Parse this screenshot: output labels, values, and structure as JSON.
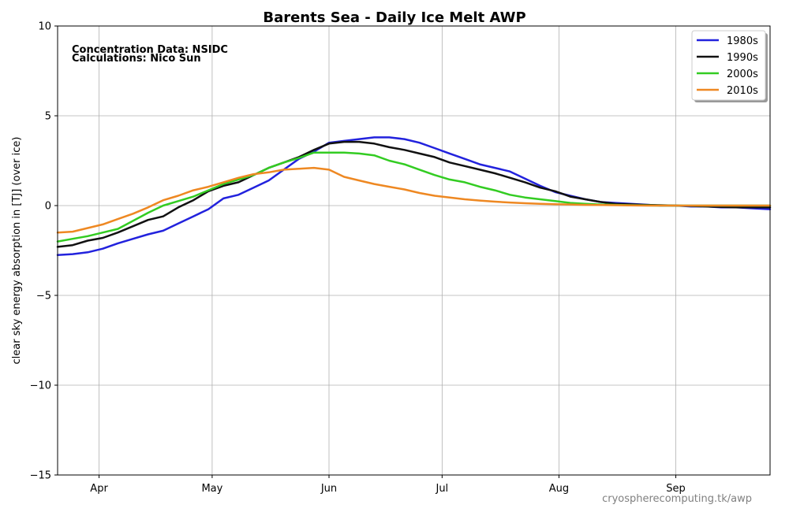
{
  "chart_data": {
    "type": "line",
    "title": "Barents Sea - Daily Ice Melt  AWP",
    "ylabel": "clear sky energy absorption in  [TJ] (over ice)",
    "xlabel": "",
    "ylim": [
      -15,
      10
    ],
    "yticks": [
      10,
      5,
      0,
      -5,
      -10,
      -15
    ],
    "ytick_labels": [
      "10",
      "5",
      "0",
      "−5",
      "−10",
      "−15"
    ],
    "xlim_doy": [
      80,
      269
    ],
    "xticks": [
      {
        "label": "Apr",
        "doy": 91
      },
      {
        "label": "May",
        "doy": 121
      },
      {
        "label": "Jun",
        "doy": 152
      },
      {
        "label": "Jul",
        "doy": 182
      },
      {
        "label": "Aug",
        "doy": 213
      },
      {
        "label": "Sep",
        "doy": 244
      }
    ],
    "grid": true,
    "legend_position": "top-right",
    "annotations": [
      "Concentration Data: NSIDC",
      "Calculations: Nico Sun"
    ],
    "credit": "cryospherecomputing.tk/awp",
    "series": [
      {
        "name": "1980s",
        "color": "#2222dd",
        "x": [
          80,
          84,
          88,
          92,
          96,
          100,
          104,
          108,
          112,
          116,
          120,
          124,
          128,
          132,
          136,
          140,
          144,
          148,
          152,
          156,
          160,
          164,
          168,
          172,
          176,
          180,
          184,
          188,
          192,
          196,
          200,
          204,
          208,
          212,
          216,
          220,
          224,
          228,
          232,
          236,
          240,
          244,
          248,
          252,
          256,
          260,
          264,
          269
        ],
        "y": [
          -2.75,
          -2.7,
          -2.6,
          -2.4,
          -2.1,
          -1.85,
          -1.6,
          -1.4,
          -1.0,
          -0.6,
          -0.2,
          0.4,
          0.6,
          1.0,
          1.4,
          2.0,
          2.6,
          3.0,
          3.5,
          3.6,
          3.7,
          3.8,
          3.8,
          3.7,
          3.5,
          3.2,
          2.9,
          2.6,
          2.3,
          2.1,
          1.9,
          1.5,
          1.1,
          0.75,
          0.55,
          0.35,
          0.2,
          0.15,
          0.1,
          0.05,
          0.0,
          0.0,
          -0.05,
          -0.05,
          -0.1,
          -0.1,
          -0.15,
          -0.2
        ]
      },
      {
        "name": "1990s",
        "color": "#111111",
        "x": [
          80,
          84,
          88,
          92,
          96,
          100,
          104,
          108,
          112,
          116,
          120,
          124,
          128,
          132,
          136,
          140,
          144,
          148,
          152,
          156,
          160,
          164,
          168,
          172,
          176,
          180,
          184,
          188,
          192,
          196,
          200,
          204,
          208,
          212,
          216,
          220,
          224,
          228,
          232,
          236,
          240,
          244,
          248,
          252,
          256,
          260,
          264,
          269
        ],
        "y": [
          -2.3,
          -2.2,
          -1.95,
          -1.8,
          -1.5,
          -1.15,
          -0.8,
          -0.6,
          -0.1,
          0.3,
          0.8,
          1.1,
          1.3,
          1.7,
          2.1,
          2.4,
          2.7,
          3.1,
          3.45,
          3.55,
          3.55,
          3.45,
          3.25,
          3.1,
          2.9,
          2.7,
          2.4,
          2.2,
          2.0,
          1.8,
          1.55,
          1.3,
          1.0,
          0.8,
          0.5,
          0.35,
          0.2,
          0.1,
          0.07,
          0.04,
          0.02,
          0.0,
          -0.02,
          -0.05,
          -0.08,
          -0.1,
          -0.1,
          -0.1
        ]
      },
      {
        "name": "2000s",
        "color": "#33cc22",
        "x": [
          80,
          84,
          88,
          92,
          96,
          100,
          104,
          108,
          112,
          116,
          120,
          124,
          128,
          132,
          136,
          140,
          144,
          148,
          152,
          156,
          160,
          164,
          168,
          172,
          176,
          180,
          184,
          188,
          192,
          196,
          200,
          204,
          208,
          212,
          216,
          220,
          224,
          228,
          232,
          236,
          240,
          244,
          248,
          252,
          256,
          260,
          264,
          269
        ],
        "y": [
          -2.0,
          -1.85,
          -1.7,
          -1.5,
          -1.3,
          -0.85,
          -0.4,
          0.0,
          0.25,
          0.5,
          0.85,
          1.2,
          1.45,
          1.7,
          2.1,
          2.4,
          2.65,
          2.95,
          2.95,
          2.95,
          2.9,
          2.8,
          2.5,
          2.3,
          2.0,
          1.7,
          1.45,
          1.3,
          1.05,
          0.85,
          0.6,
          0.45,
          0.35,
          0.25,
          0.15,
          0.1,
          0.06,
          0.04,
          0.02,
          0.01,
          0.0,
          0.0,
          0.0,
          0.0,
          0.0,
          0.0,
          0.0,
          0.0
        ]
      },
      {
        "name": "2010s",
        "color": "#ee8822",
        "x": [
          80,
          84,
          88,
          92,
          96,
          100,
          104,
          108,
          112,
          116,
          120,
          124,
          128,
          132,
          136,
          140,
          144,
          148,
          152,
          156,
          160,
          164,
          168,
          172,
          176,
          180,
          184,
          188,
          192,
          196,
          200,
          204,
          208,
          212,
          216,
          220,
          224,
          228,
          232,
          236,
          240,
          244,
          248,
          252,
          256,
          260,
          264,
          269
        ],
        "y": [
          -1.5,
          -1.45,
          -1.25,
          -1.05,
          -0.75,
          -0.45,
          -0.1,
          0.3,
          0.55,
          0.85,
          1.05,
          1.3,
          1.55,
          1.75,
          1.85,
          2.0,
          2.05,
          2.1,
          2.0,
          1.6,
          1.4,
          1.2,
          1.05,
          0.9,
          0.7,
          0.55,
          0.45,
          0.35,
          0.28,
          0.22,
          0.17,
          0.13,
          0.1,
          0.08,
          0.06,
          0.04,
          0.03,
          0.02,
          0.01,
          0.0,
          0.0,
          0.0,
          0.0,
          0.0,
          0.0,
          0.0,
          0.0,
          0.0
        ]
      }
    ]
  }
}
